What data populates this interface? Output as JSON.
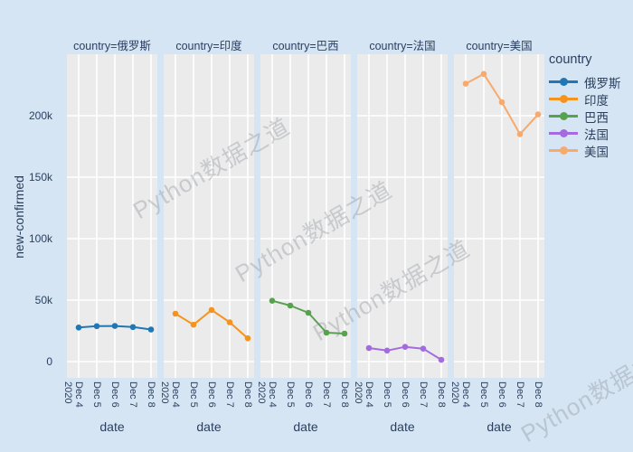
{
  "figure": {
    "background": "#d6e5f3",
    "panel_background": "#ebebeb",
    "text_color": "#2a3f5f",
    "gridline_color": "#ffffff"
  },
  "watermark": {
    "text": "Python数据之道"
  },
  "legend": {
    "title": "country",
    "items": [
      {
        "label": "俄罗斯",
        "color": "#1f77b4"
      },
      {
        "label": "印度",
        "color": "#f5941d"
      },
      {
        "label": "巴西",
        "color": "#56a24e"
      },
      {
        "label": "法国",
        "color": "#a36be0"
      },
      {
        "label": "美国",
        "color": "#f8a96c"
      }
    ]
  },
  "axes": {
    "y_title": "new-confirmed",
    "y_ticks": [
      "0",
      "50k",
      "100k",
      "150k",
      "200k"
    ],
    "x_title": "date",
    "x_ticks": [
      [
        "Dec 4",
        "2020"
      ],
      [
        "Dec 5"
      ],
      [
        "Dec 6"
      ],
      [
        "Dec 7"
      ],
      [
        "Dec 8"
      ]
    ]
  },
  "facets": [
    {
      "title": "country=俄罗斯",
      "country": "俄罗斯",
      "color": "#1f77b4",
      "values": [
        27700,
        28800,
        29000,
        28100,
        26100
      ]
    },
    {
      "title": "country=印度",
      "country": "印度",
      "color": "#f5941d",
      "values": [
        39000,
        30000,
        42000,
        32000,
        19000
      ]
    },
    {
      "title": "country=巴西",
      "country": "巴西",
      "color": "#56a24e",
      "values": [
        49500,
        45600,
        39700,
        23500,
        22800
      ]
    },
    {
      "title": "country=法国",
      "country": "法国",
      "color": "#a36be0",
      "values": [
        11000,
        9000,
        12000,
        10500,
        1500
      ]
    },
    {
      "title": "country=美国",
      "country": "美国",
      "color": "#f8a96c",
      "values": [
        226000,
        234000,
        211000,
        185000,
        201000
      ]
    }
  ],
  "chart_data": {
    "type": "line",
    "faceted": true,
    "facet_titles": [
      "country=俄罗斯",
      "country=印度",
      "country=巴西",
      "country=法国",
      "country=美国"
    ],
    "x_labels": [
      "Dec 4 2020",
      "Dec 5",
      "Dec 6",
      "Dec 7",
      "Dec 8"
    ],
    "series": [
      {
        "name": "俄罗斯",
        "color": "#1f77b4",
        "values": [
          27700,
          28800,
          29000,
          28100,
          26100
        ]
      },
      {
        "name": "印度",
        "color": "#f5941d",
        "values": [
          39000,
          30000,
          42000,
          32000,
          19000
        ]
      },
      {
        "name": "巴西",
        "color": "#56a24e",
        "values": [
          49500,
          45600,
          39700,
          23500,
          22800
        ]
      },
      {
        "name": "法国",
        "color": "#a36be0",
        "values": [
          11000,
          9000,
          12000,
          10500,
          1500
        ]
      },
      {
        "name": "美国",
        "color": "#f8a96c",
        "values": [
          226000,
          234000,
          211000,
          185000,
          201000
        ]
      }
    ],
    "title": "",
    "xlabel": "date",
    "ylabel": "new-confirmed",
    "ylim": [
      -13000,
      250000
    ],
    "yticks_values": [
      0,
      50000,
      100000,
      150000,
      200000
    ],
    "grid": true,
    "legend_title": "country",
    "legend_position": "right",
    "markers": true
  }
}
